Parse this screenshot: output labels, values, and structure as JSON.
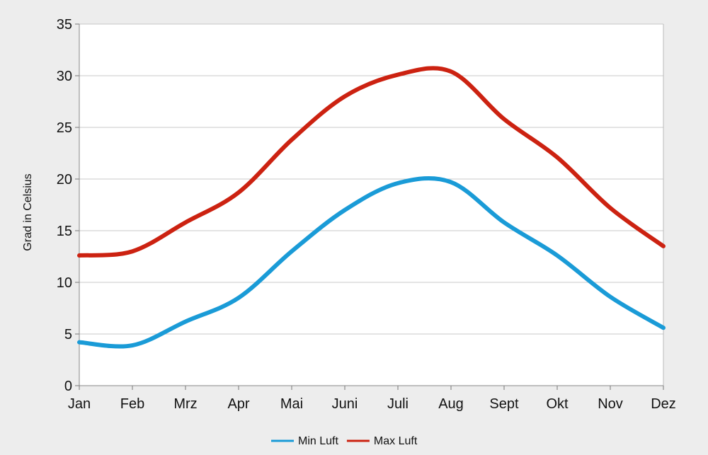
{
  "chart_data": {
    "type": "line",
    "title": "",
    "xlabel": "",
    "ylabel": "Grad in Celsius",
    "categories": [
      "Jan",
      "Feb",
      "Mrz",
      "Apr",
      "Mai",
      "Juni",
      "Juli",
      "Aug",
      "Sept",
      "Okt",
      "Nov",
      "Dez"
    ],
    "ylim": [
      0,
      35
    ],
    "yticks": [
      0,
      5,
      10,
      15,
      20,
      25,
      30,
      35
    ],
    "grid": true,
    "legend_position": "bottom",
    "smooth": true,
    "series": [
      {
        "name": "Min Luft",
        "color": "#1a9bd7",
        "values": [
          4.2,
          3.9,
          6.2,
          8.5,
          13.0,
          17.0,
          19.6,
          19.7,
          15.8,
          12.6,
          8.6,
          5.6
        ]
      },
      {
        "name": "Max Luft",
        "color": "#cc2211",
        "values": [
          12.6,
          13.0,
          15.8,
          18.7,
          23.8,
          28.0,
          30.1,
          30.4,
          25.8,
          22.1,
          17.2,
          13.5
        ]
      }
    ]
  }
}
